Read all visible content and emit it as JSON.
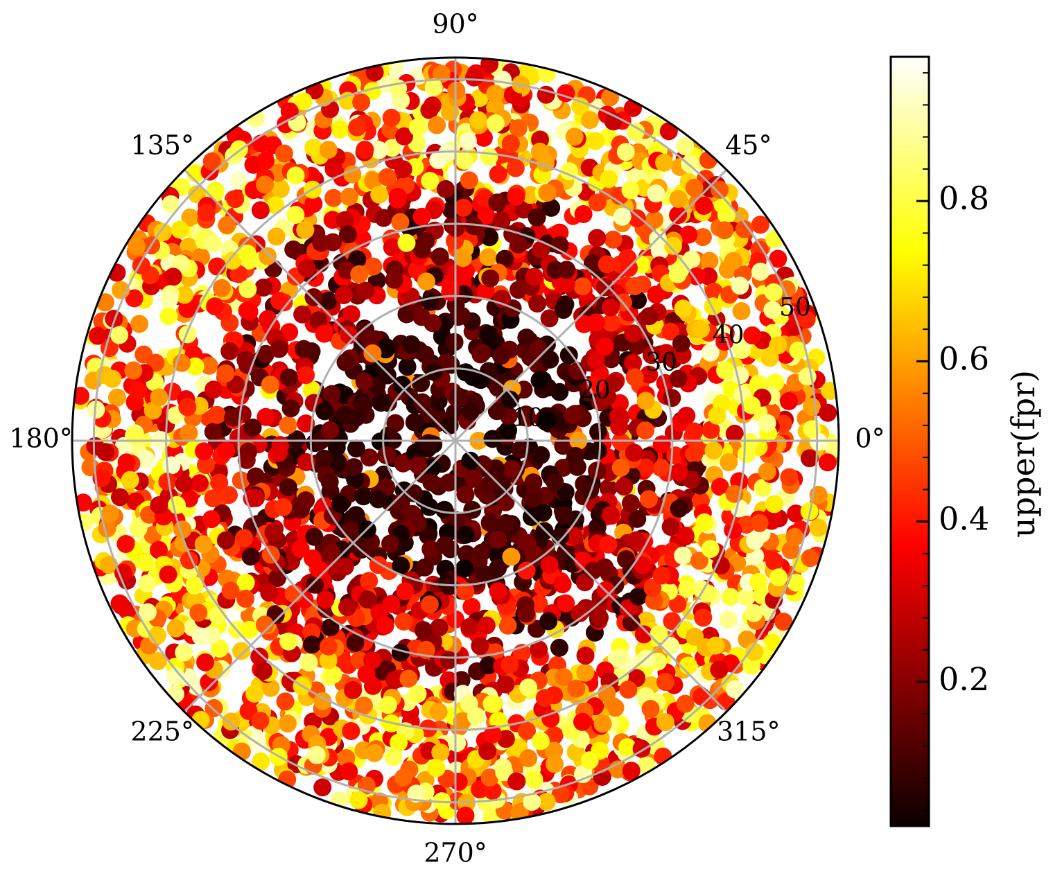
{
  "chart_data": {
    "type": "scatter",
    "projection": "polar",
    "title": "",
    "theta_tick_labels": [
      "0°",
      "45°",
      "90°",
      "135°",
      "180°",
      "225°",
      "270°",
      "315°"
    ],
    "theta_ticks_deg": [
      0,
      45,
      90,
      135,
      180,
      225,
      270,
      315
    ],
    "r_ticks": [
      10,
      20,
      30,
      40,
      50
    ],
    "r_tick_labels": [
      "10",
      "20",
      "30",
      "40",
      "50"
    ],
    "rlim": [
      0,
      53
    ],
    "grid": true,
    "colormap": "hot",
    "colorbar": {
      "label": "upper(fpr)",
      "ticks": [
        0.2,
        0.4,
        0.6,
        0.8
      ],
      "tick_labels": [
        "0.2",
        "0.4",
        "0.6",
        "0.8"
      ],
      "range": [
        0.02,
        0.98
      ],
      "position": "right"
    },
    "points_description_count": 3200,
    "point_clusters": [
      {
        "r_range": [
          0,
          20
        ],
        "value_range": [
          0.0,
          0.15
        ]
      },
      {
        "r_range": [
          20,
          35
        ],
        "value_range": [
          0.05,
          0.45
        ]
      },
      {
        "r_range": [
          35,
          53
        ],
        "value_range": [
          0.3,
          0.95
        ]
      }
    ]
  }
}
